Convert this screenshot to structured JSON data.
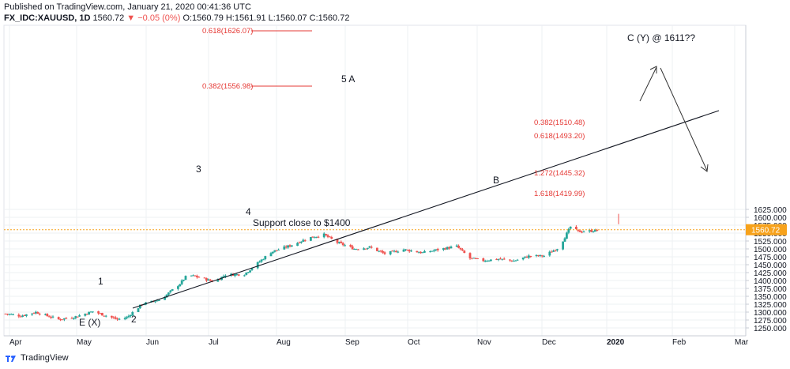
{
  "header": {
    "published": "Published on TradingView.com, January 21, 2020 00:41:36 UTC",
    "symbol": "FX_IDC:XAUUSD, 1D",
    "last": "1560.72",
    "change": "−0.05 (0%)",
    "ohlc": "O:1560.79 H:1561.91 L:1560.07 C:1560.72"
  },
  "footer": {
    "brand": "TradingView"
  },
  "colors": {
    "up": "#26a69a",
    "down": "#ef5350",
    "price_line": "#f7a21b",
    "fib": "#e53935",
    "grid": "#eef0f3",
    "text": "#131722"
  },
  "chart_data": {
    "type": "candlestick",
    "y_axis": {
      "min": 1250,
      "max": 1625,
      "ticks": [
        1250,
        1275,
        1300,
        1325,
        1350,
        1375,
        1400,
        1425,
        1450,
        1475,
        1500,
        1525,
        1550,
        1575,
        1600,
        1625
      ],
      "side": "right"
    },
    "x_axis": {
      "labels": [
        "Apr",
        "May",
        "Jun",
        "Jul",
        "Aug",
        "Sep",
        "Oct",
        "Nov",
        "Dec",
        "2020",
        "Feb",
        "Mar"
      ],
      "bold_label": "2020"
    },
    "last_price_label": "1560.72",
    "anchors": [
      {
        "day": 0,
        "close": 1295
      },
      {
        "day": 8,
        "close": 1288
      },
      {
        "day": 16,
        "close": 1300
      },
      {
        "day": 22,
        "close": 1288
      },
      {
        "day": 28,
        "close": 1277
      },
      {
        "day": 36,
        "close": 1284
      },
      {
        "day": 46,
        "close": 1302
      },
      {
        "day": 54,
        "close": 1287
      },
      {
        "day": 59,
        "close": 1277
      },
      {
        "day": 64,
        "close": 1283
      },
      {
        "day": 72,
        "close": 1325
      },
      {
        "day": 82,
        "close": 1340
      },
      {
        "day": 92,
        "close": 1390
      },
      {
        "day": 96,
        "close": 1418
      },
      {
        "day": 102,
        "close": 1410
      },
      {
        "day": 110,
        "close": 1396
      },
      {
        "day": 116,
        "close": 1418
      },
      {
        "day": 126,
        "close": 1420
      },
      {
        "day": 140,
        "close": 1490
      },
      {
        "day": 150,
        "close": 1510
      },
      {
        "day": 160,
        "close": 1535
      },
      {
        "day": 168,
        "close": 1545
      },
      {
        "day": 175,
        "close": 1520
      },
      {
        "day": 184,
        "close": 1500
      },
      {
        "day": 192,
        "close": 1505
      },
      {
        "day": 200,
        "close": 1485
      },
      {
        "day": 210,
        "close": 1498
      },
      {
        "day": 220,
        "close": 1488
      },
      {
        "day": 230,
        "close": 1500
      },
      {
        "day": 238,
        "close": 1508
      },
      {
        "day": 245,
        "close": 1470
      },
      {
        "day": 252,
        "close": 1463
      },
      {
        "day": 260,
        "close": 1468
      },
      {
        "day": 268,
        "close": 1462
      },
      {
        "day": 276,
        "close": 1477
      },
      {
        "day": 284,
        "close": 1478
      },
      {
        "day": 292,
        "close": 1505
      },
      {
        "day": 298,
        "close": 1570
      },
      {
        "day": 302,
        "close": 1555
      },
      {
        "day": 309,
        "close": 1557
      },
      {
        "day": 314,
        "close": 1561
      }
    ],
    "fib_levels": [
      {
        "label": "0.618(1626.07)"
      },
      {
        "label": "0.382(1556.98)"
      },
      {
        "label": "0.382(1510.48)"
      },
      {
        "label": "0.618(1493.20)"
      },
      {
        "label": "1.272(1445.32)"
      },
      {
        "label": "1.618(1419.99)"
      }
    ],
    "wave_labels": [
      "1",
      "2",
      "3",
      "4",
      "5 A",
      "B",
      "E (X)",
      "C (Y) @ 1611??"
    ],
    "annotation": "Support close to $1400"
  }
}
